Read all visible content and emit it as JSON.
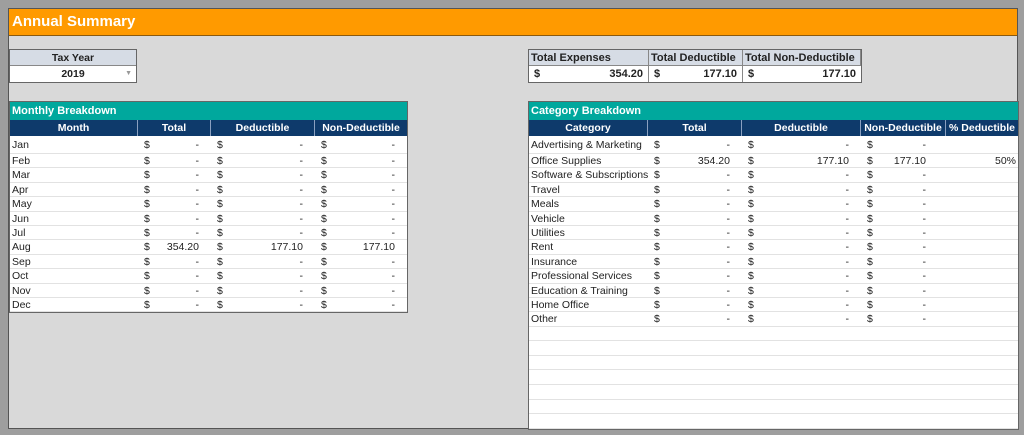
{
  "title": "Annual Summary",
  "tax_year": {
    "label": "Tax Year",
    "value": "2019"
  },
  "totals": {
    "headers": [
      "Total Expenses",
      "Total Deductible",
      "Total Non-Deductible"
    ],
    "values": [
      {
        "currency": "$",
        "amount": "354.20"
      },
      {
        "currency": "$",
        "amount": "177.10"
      },
      {
        "currency": "$",
        "amount": "177.10"
      }
    ]
  },
  "monthly": {
    "title": "Monthly Breakdown",
    "columns": [
      "Month",
      "Total",
      "Deductible",
      "Non-Deductible"
    ],
    "rows": [
      {
        "month": "Jan",
        "total": "-",
        "deductible": "-",
        "non_deductible": "-"
      },
      {
        "month": "Feb",
        "total": "-",
        "deductible": "-",
        "non_deductible": "-"
      },
      {
        "month": "Mar",
        "total": "-",
        "deductible": "-",
        "non_deductible": "-"
      },
      {
        "month": "Apr",
        "total": "-",
        "deductible": "-",
        "non_deductible": "-"
      },
      {
        "month": "May",
        "total": "-",
        "deductible": "-",
        "non_deductible": "-"
      },
      {
        "month": "Jun",
        "total": "-",
        "deductible": "-",
        "non_deductible": "-"
      },
      {
        "month": "Jul",
        "total": "-",
        "deductible": "-",
        "non_deductible": "-"
      },
      {
        "month": "Aug",
        "total": "354.20",
        "deductible": "177.10",
        "non_deductible": "177.10"
      },
      {
        "month": "Sep",
        "total": "-",
        "deductible": "-",
        "non_deductible": "-"
      },
      {
        "month": "Oct",
        "total": "-",
        "deductible": "-",
        "non_deductible": "-"
      },
      {
        "month": "Nov",
        "total": "-",
        "deductible": "-",
        "non_deductible": "-"
      },
      {
        "month": "Dec",
        "total": "-",
        "deductible": "-",
        "non_deductible": "-"
      }
    ]
  },
  "category": {
    "title": "Category Breakdown",
    "columns": [
      "Category",
      "Total",
      "Deductible",
      "Non-Deductible",
      "% Deductible"
    ],
    "rows": [
      {
        "name": "Advertising & Marketing",
        "total": "-",
        "deductible": "-",
        "non_deductible": "-",
        "pct": ""
      },
      {
        "name": "Office Supplies",
        "total": "354.20",
        "deductible": "177.10",
        "non_deductible": "177.10",
        "pct": "50%"
      },
      {
        "name": "Software & Subscriptions",
        "total": "-",
        "deductible": "-",
        "non_deductible": "-",
        "pct": ""
      },
      {
        "name": "Travel",
        "total": "-",
        "deductible": "-",
        "non_deductible": "-",
        "pct": ""
      },
      {
        "name": "Meals",
        "total": "-",
        "deductible": "-",
        "non_deductible": "-",
        "pct": ""
      },
      {
        "name": "Vehicle",
        "total": "-",
        "deductible": "-",
        "non_deductible": "-",
        "pct": ""
      },
      {
        "name": "Utilities",
        "total": "-",
        "deductible": "-",
        "non_deductible": "-",
        "pct": ""
      },
      {
        "name": "Rent",
        "total": "-",
        "deductible": "-",
        "non_deductible": "-",
        "pct": ""
      },
      {
        "name": "Insurance",
        "total": "-",
        "deductible": "-",
        "non_deductible": "-",
        "pct": ""
      },
      {
        "name": "Professional Services",
        "total": "-",
        "deductible": "-",
        "non_deductible": "-",
        "pct": ""
      },
      {
        "name": "Education & Training",
        "total": "-",
        "deductible": "-",
        "non_deductible": "-",
        "pct": ""
      },
      {
        "name": "Home Office",
        "total": "-",
        "deductible": "-",
        "non_deductible": "-",
        "pct": ""
      },
      {
        "name": "Other",
        "total": "-",
        "deductible": "-",
        "non_deductible": "-",
        "pct": ""
      }
    ]
  },
  "currency_symbol": "$",
  "colors": {
    "title_bar": "#ff9a00",
    "section_header": "#00a89d",
    "column_header": "#0e3a6b",
    "label_header": "#d6dce5"
  }
}
